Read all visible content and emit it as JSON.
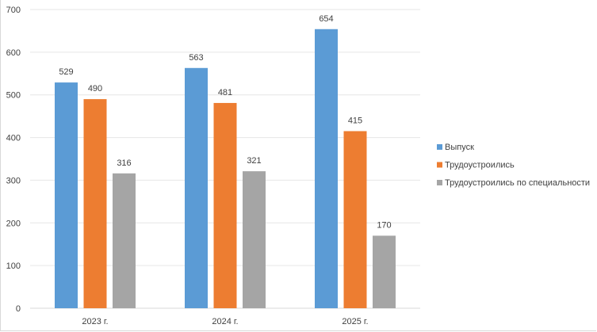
{
  "chart_data": {
    "type": "bar",
    "title": "",
    "xlabel": "",
    "ylabel": "",
    "categories": [
      "2023 г.",
      "2024 г.",
      "2025 г."
    ],
    "series": [
      {
        "name": "Выпуск",
        "color": "#5b9bd5",
        "values": [
          529,
          563,
          654
        ]
      },
      {
        "name": "Трудоустроились",
        "color": "#ed7d31",
        "values": [
          490,
          481,
          415
        ]
      },
      {
        "name": "Трудоустроились по специальности",
        "color": "#a5a5a5",
        "values": [
          316,
          321,
          170
        ]
      }
    ],
    "ylim": [
      0,
      700
    ],
    "yticks": [
      0,
      100,
      200,
      300,
      400,
      500,
      600,
      700
    ],
    "grid": true,
    "legend": "right",
    "data_labels": true
  }
}
